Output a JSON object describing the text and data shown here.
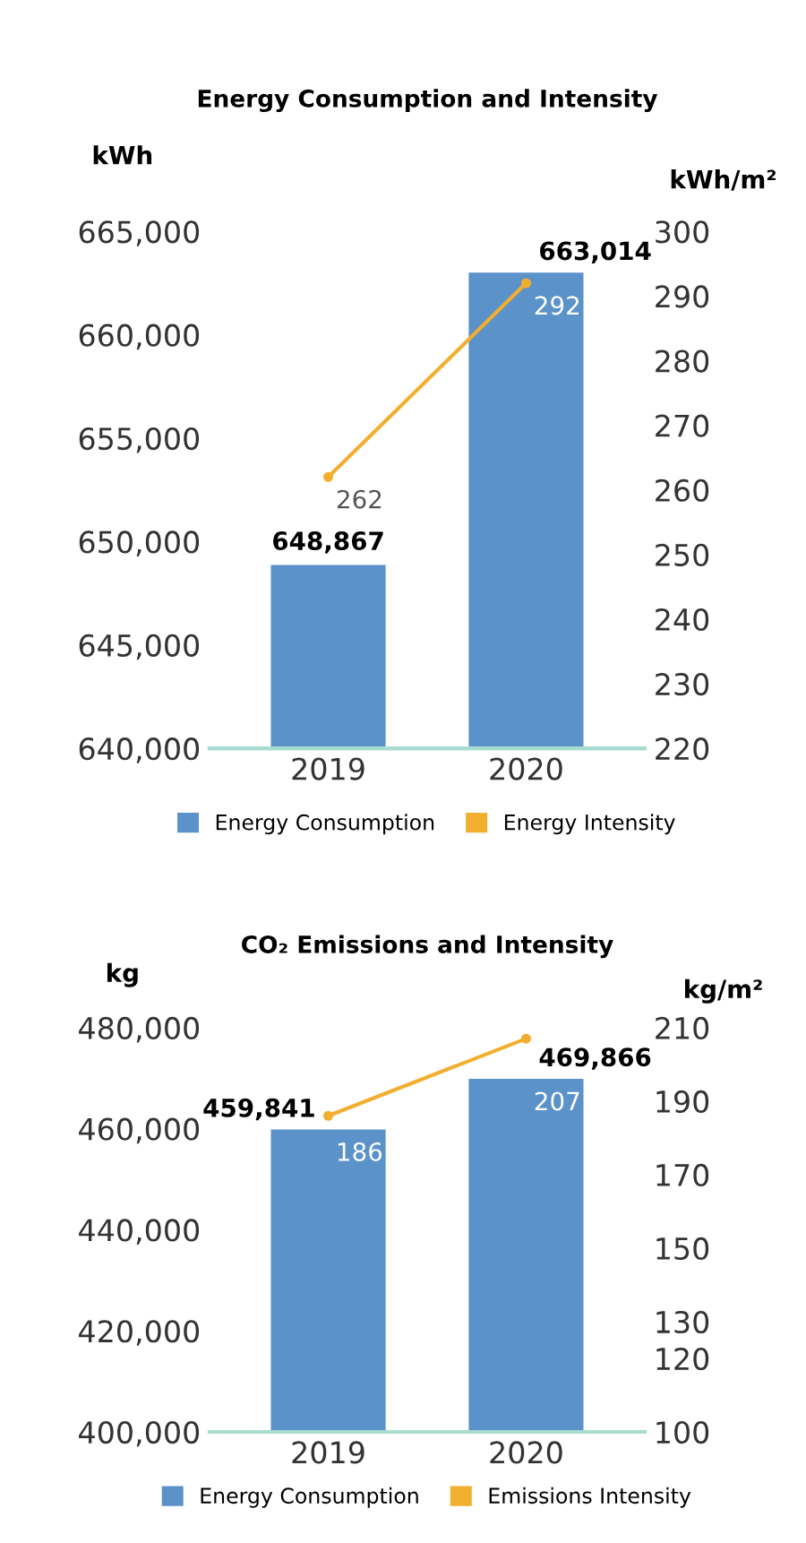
{
  "chart_data": [
    {
      "type": "bar",
      "title": "Energy Consumption and Intensity",
      "ylabel": "kWh",
      "y2label": "kWh/m²",
      "categories": [
        "2019",
        "2020"
      ],
      "series": [
        {
          "name": "Energy Consumption",
          "color": "#5b92ca",
          "values": [
            648867,
            663014
          ],
          "value_labels": [
            "648,867",
            "663,014"
          ]
        },
        {
          "name": "Energy Intensity",
          "type": "line",
          "axis": "y2",
          "color": "#f2ae2e",
          "values": [
            262,
            292
          ],
          "value_labels": [
            "262",
            "292"
          ],
          "marker": "circle"
        }
      ],
      "ylim": [
        640000,
        665000
      ],
      "yticks": [
        {
          "value": 640000,
          "label": "640,000"
        },
        {
          "value": 645000,
          "label": "645,000"
        },
        {
          "value": 650000,
          "label": "650,000"
        },
        {
          "value": 655000,
          "label": "655,000"
        },
        {
          "value": 660000,
          "label": "660,000"
        },
        {
          "value": 665000,
          "label": "665,000"
        }
      ],
      "y2lim": [
        220,
        300
      ],
      "y2ticks": [
        220,
        230,
        240,
        250,
        260,
        270,
        280,
        290,
        300
      ],
      "grid": false,
      "legend": "bottom"
    },
    {
      "type": "bar",
      "title": "CO₂ Emissions and Intensity",
      "ylabel": "kg",
      "y2label": "kg/m²",
      "categories": [
        "2019",
        "2020"
      ],
      "series": [
        {
          "name": "Energy Consumption",
          "color": "#5b92ca",
          "values": [
            459841,
            469866
          ],
          "value_labels": [
            "459,841",
            "469,866"
          ]
        },
        {
          "name": "Emissions Intensity",
          "type": "line",
          "axis": "y2",
          "color": "#f2ae2e",
          "values": [
            186,
            207
          ],
          "value_labels": [
            "186",
            "207"
          ],
          "marker": "circle"
        }
      ],
      "ylim": [
        400000,
        480000
      ],
      "yticks": [
        {
          "value": 400000,
          "label": "400,000"
        },
        {
          "value": 420000,
          "label": "420,000"
        },
        {
          "value": 440000,
          "label": "440,000"
        },
        {
          "value": 460000,
          "label": "460,000"
        },
        {
          "value": 480000,
          "label": "480,000"
        }
      ],
      "y2lim": [
        100,
        210
      ],
      "y2ticks": [
        100,
        120,
        130,
        150,
        170,
        190,
        210
      ],
      "grid": false,
      "legend": "bottom"
    }
  ]
}
